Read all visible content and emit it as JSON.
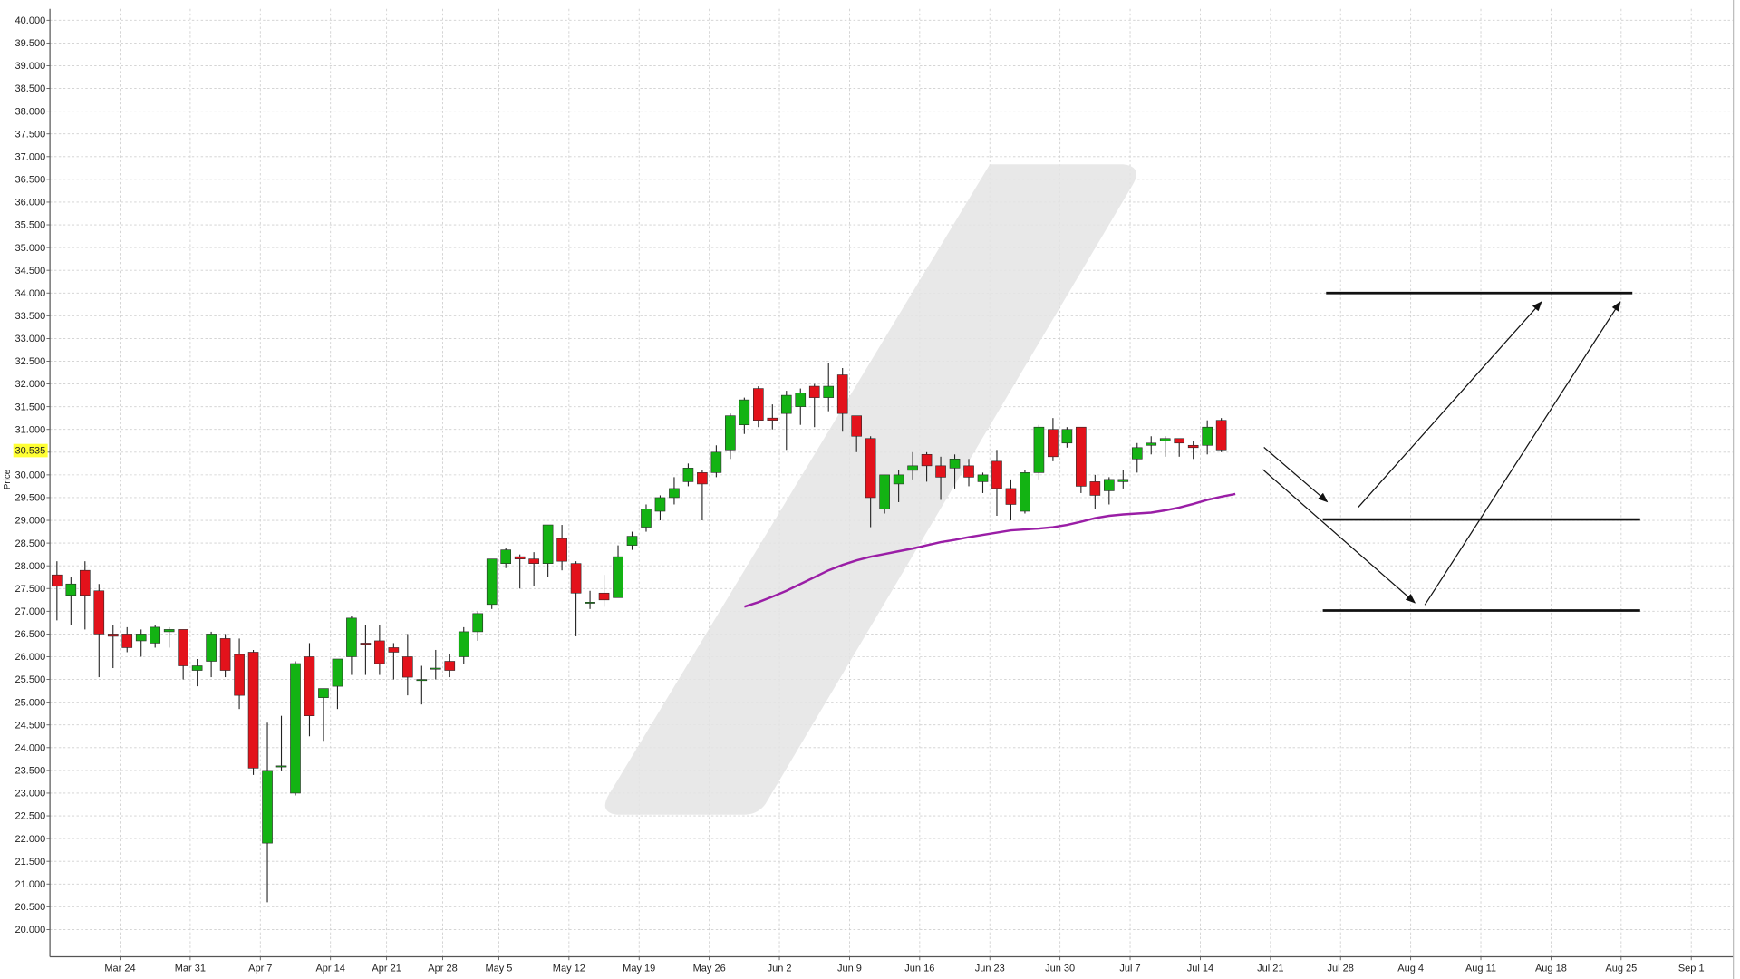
{
  "chart_data": {
    "type": "candlestick",
    "y_label": "Price",
    "last_price": 30.535,
    "up_color": "#13b313",
    "down_color": "#e3121b",
    "grid": true,
    "categories": [
      null,
      null,
      null,
      null,
      null,
      "Mar 24",
      null,
      null,
      null,
      null,
      "Mar 31",
      null,
      null,
      null,
      null,
      "Apr 7",
      null,
      null,
      null,
      null,
      "Apr 14",
      null,
      null,
      null,
      "Apr 21",
      null,
      null,
      null,
      "Apr 28",
      null,
      null,
      null,
      "May 5",
      null,
      null,
      null,
      null,
      "May 12",
      null,
      null,
      null,
      null,
      "May 19",
      null,
      null,
      null,
      null,
      "May 26",
      null,
      null,
      null,
      null,
      "Jun 2",
      null,
      null,
      null,
      null,
      "Jun 9",
      null,
      null,
      null,
      null,
      "Jun 16",
      null,
      null,
      null,
      null,
      "Jun 23",
      null,
      null,
      null,
      null,
      "Jun 30",
      null,
      null,
      null,
      null,
      "Jul 7",
      null,
      null,
      null,
      null,
      "Jul 14",
      null,
      null,
      null,
      null,
      "Jul 21",
      null,
      null,
      null,
      null,
      "Jul 28",
      null,
      null,
      null,
      null,
      "Aug 4",
      null,
      null,
      null,
      null,
      "Aug 11",
      null,
      null,
      null,
      null,
      "Aug 18",
      null,
      null,
      null,
      null,
      "Aug 25",
      null,
      null,
      null,
      null,
      "Sep 1",
      null,
      null
    ],
    "open": [
      27.8,
      27.35,
      27.9,
      27.45,
      26.5,
      26.5,
      26.35,
      26.3,
      26.55,
      26.6,
      25.7,
      25.9,
      26.4,
      26.05,
      26.1,
      21.9,
      23.6,
      23.0,
      26.0,
      25.1,
      25.35,
      26.0,
      26.3,
      26.35,
      26.2,
      26.0,
      25.5,
      25.75,
      25.9,
      26.0,
      26.55,
      27.15,
      28.05,
      28.2,
      28.15,
      28.05,
      28.6,
      28.05,
      27.2,
      27.4,
      27.3,
      28.45,
      28.85,
      29.2,
      29.5,
      29.85,
      30.05,
      30.05,
      30.55,
      31.1,
      31.9,
      31.25,
      31.35,
      31.5,
      31.95,
      31.7,
      32.2,
      31.3,
      30.8,
      29.25,
      29.8,
      30.1,
      30.45,
      30.2,
      30.15,
      30.2,
      29.85,
      30.3,
      29.7,
      29.2,
      30.05,
      31.0,
      30.7,
      31.05,
      29.85,
      29.65,
      29.85,
      30.35,
      30.65,
      30.75,
      30.8,
      30.65,
      30.65,
      31.2,
      null,
      null,
      null,
      null,
      null,
      null,
      null,
      null,
      null,
      null,
      null,
      null,
      null,
      null,
      null,
      null,
      null,
      null,
      null,
      null,
      null,
      null,
      null,
      null,
      null,
      null,
      null,
      null,
      null,
      null,
      null,
      null,
      null,
      null,
      null,
      null
    ],
    "high": [
      28.1,
      27.75,
      28.1,
      27.6,
      26.7,
      26.65,
      26.6,
      26.7,
      26.65,
      26.6,
      25.95,
      26.55,
      26.5,
      26.4,
      26.15,
      24.55,
      24.7,
      25.9,
      26.3,
      25.3,
      25.95,
      26.9,
      26.7,
      26.7,
      26.3,
      26.5,
      25.8,
      26.15,
      26.05,
      26.65,
      27.0,
      28.15,
      28.4,
      28.25,
      28.3,
      28.9,
      28.9,
      28.1,
      27.45,
      27.8,
      28.45,
      28.75,
      29.35,
      29.55,
      29.95,
      30.25,
      30.1,
      30.65,
      31.35,
      31.7,
      31.95,
      31.55,
      31.85,
      31.9,
      32.0,
      32.45,
      32.35,
      31.3,
      30.85,
      30.0,
      30.1,
      30.5,
      30.5,
      30.4,
      30.45,
      30.35,
      30.05,
      30.55,
      29.9,
      30.1,
      31.1,
      31.25,
      31.05,
      31.05,
      30.0,
      29.95,
      30.1,
      30.7,
      30.85,
      30.85,
      30.8,
      30.75,
      31.2,
      31.25,
      null,
      null,
      null,
      null,
      null,
      null,
      null,
      null,
      null,
      null,
      null,
      null,
      null,
      null,
      null,
      null,
      null,
      null,
      null,
      null,
      null,
      null,
      null,
      null,
      null,
      null,
      null,
      null,
      null,
      null,
      null,
      null,
      null,
      null,
      null,
      null
    ],
    "low": [
      26.8,
      26.7,
      26.6,
      25.55,
      25.75,
      26.1,
      26.0,
      26.2,
      26.2,
      25.5,
      25.35,
      25.55,
      25.55,
      24.85,
      23.4,
      20.6,
      23.5,
      22.95,
      24.25,
      24.15,
      24.85,
      25.6,
      25.6,
      25.6,
      25.5,
      25.15,
      24.95,
      25.5,
      25.55,
      25.85,
      26.35,
      27.05,
      27.95,
      27.5,
      27.55,
      27.75,
      27.9,
      26.45,
      27.05,
      27.1,
      27.3,
      28.35,
      28.75,
      29.0,
      29.35,
      29.75,
      29.0,
      29.95,
      30.35,
      30.9,
      31.05,
      31.0,
      30.55,
      31.1,
      31.05,
      31.4,
      30.95,
      30.5,
      28.85,
      29.15,
      29.4,
      29.9,
      29.85,
      29.45,
      29.7,
      29.75,
      29.6,
      29.1,
      29.0,
      29.15,
      29.9,
      30.3,
      30.6,
      29.6,
      29.25,
      29.35,
      29.7,
      30.05,
      30.45,
      30.4,
      30.4,
      30.35,
      30.45,
      30.5,
      null,
      null,
      null,
      null,
      null,
      null,
      null,
      null,
      null,
      null,
      null,
      null,
      null,
      null,
      null,
      null,
      null,
      null,
      null,
      null,
      null,
      null,
      null,
      null,
      null,
      null,
      null,
      null,
      null,
      null,
      null,
      null,
      null,
      null,
      null,
      null
    ],
    "close": [
      27.55,
      27.6,
      27.35,
      26.5,
      26.45,
      26.2,
      26.5,
      26.65,
      26.6,
      25.8,
      25.8,
      26.5,
      25.7,
      25.15,
      23.55,
      23.5,
      23.6,
      25.85,
      24.7,
      25.3,
      25.95,
      26.85,
      26.28,
      25.85,
      26.1,
      25.55,
      25.5,
      25.75,
      25.7,
      26.55,
      26.95,
      28.15,
      28.35,
      28.15,
      28.05,
      28.9,
      28.1,
      27.4,
      27.2,
      27.25,
      28.2,
      28.65,
      29.25,
      29.5,
      29.7,
      30.15,
      29.8,
      30.5,
      31.3,
      31.65,
      31.2,
      31.2,
      31.75,
      31.8,
      31.7,
      31.95,
      31.35,
      30.85,
      29.5,
      30.0,
      30.0,
      30.2,
      30.2,
      29.95,
      30.35,
      29.95,
      30.0,
      29.7,
      29.35,
      30.05,
      31.05,
      30.4,
      31.0,
      29.75,
      29.55,
      29.9,
      29.9,
      30.6,
      30.7,
      30.8,
      30.7,
      30.6,
      31.05,
      30.55,
      null,
      null,
      null,
      null,
      null,
      null,
      null,
      null,
      null,
      null,
      null,
      null,
      null,
      null,
      null,
      null,
      null,
      null,
      null,
      null,
      null,
      null,
      null,
      null,
      null,
      null,
      null,
      null,
      null,
      null,
      null,
      null,
      null,
      null,
      null,
      null
    ],
    "moving_average": {
      "color": "#9a1ea6",
      "values": [
        null,
        null,
        null,
        null,
        null,
        null,
        null,
        null,
        null,
        null,
        null,
        null,
        null,
        null,
        null,
        null,
        null,
        null,
        null,
        null,
        null,
        null,
        null,
        null,
        null,
        null,
        null,
        null,
        null,
        null,
        null,
        null,
        null,
        null,
        null,
        null,
        null,
        null,
        null,
        null,
        null,
        null,
        null,
        null,
        null,
        null,
        null,
        null,
        null,
        27.1,
        27.2,
        27.32,
        27.45,
        27.6,
        27.75,
        27.9,
        28.02,
        28.12,
        28.2,
        28.26,
        28.32,
        28.38,
        28.45,
        28.52,
        28.57,
        28.63,
        28.68,
        28.73,
        28.78,
        28.8,
        28.82,
        28.85,
        28.9,
        28.97,
        29.05,
        29.1,
        29.13,
        29.15,
        29.17,
        29.22,
        29.28,
        29.36,
        29.45,
        29.52,
        29.58,
        null,
        null,
        null,
        null,
        null,
        null,
        null,
        null,
        null,
        null,
        null,
        null,
        null,
        null,
        null,
        null,
        null,
        null,
        null,
        null,
        null,
        null,
        null,
        null,
        null,
        null,
        null,
        null,
        null,
        null,
        null,
        null,
        null,
        null,
        null,
        null
      ]
    },
    "ylim": [
      19.4,
      40.25
    ],
    "yticks": [
      {
        "value": 20,
        "label": "20.000"
      },
      {
        "value": 20.5,
        "label": "20.500"
      },
      {
        "value": 21,
        "label": "21.000"
      },
      {
        "value": 21.5,
        "label": "21.500"
      },
      {
        "value": 22,
        "label": "22.000"
      },
      {
        "value": 22.5,
        "label": "22.500"
      },
      {
        "value": 23,
        "label": "23.000"
      },
      {
        "value": 23.5,
        "label": "23.500"
      },
      {
        "value": 24,
        "label": "24.000"
      },
      {
        "value": 24.5,
        "label": "24.500"
      },
      {
        "value": 25,
        "label": "25.000"
      },
      {
        "value": 25.5,
        "label": "25.500"
      },
      {
        "value": 26,
        "label": "26.000"
      },
      {
        "value": 26.5,
        "label": "26.500"
      },
      {
        "value": 27,
        "label": "27.000"
      },
      {
        "value": 27.5,
        "label": "27.500"
      },
      {
        "value": 28,
        "label": "28.000"
      },
      {
        "value": 28.5,
        "label": "28.500"
      },
      {
        "value": 29,
        "label": "29.000"
      },
      {
        "value": 29.5,
        "label": "29.500"
      },
      {
        "value": 30,
        "label": "30.000"
      },
      {
        "value": 30.5,
        "label": "30.500"
      },
      {
        "value": 31,
        "label": "31.000"
      },
      {
        "value": 31.5,
        "label": "31.500"
      },
      {
        "value": 32,
        "label": "32.000"
      },
      {
        "value": 32.5,
        "label": "32.500"
      },
      {
        "value": 33,
        "label": "33.000"
      },
      {
        "value": 33.5,
        "label": "33.500"
      },
      {
        "value": 34,
        "label": "34.000"
      },
      {
        "value": 34.5,
        "label": "34.500"
      },
      {
        "value": 35,
        "label": "35.000"
      },
      {
        "value": 35.5,
        "label": "35.500"
      },
      {
        "value": 36,
        "label": "36.000"
      },
      {
        "value": 36.5,
        "label": "36.500"
      },
      {
        "value": 37,
        "label": "37.000"
      },
      {
        "value": 37.5,
        "label": "37.500"
      },
      {
        "value": 38,
        "label": "38.000"
      },
      {
        "value": 38.5,
        "label": "38.500"
      },
      {
        "value": 39,
        "label": "39.000"
      },
      {
        "value": 39.5,
        "label": "39.500"
      },
      {
        "value": 40,
        "label": "40.000"
      }
    ]
  }
}
